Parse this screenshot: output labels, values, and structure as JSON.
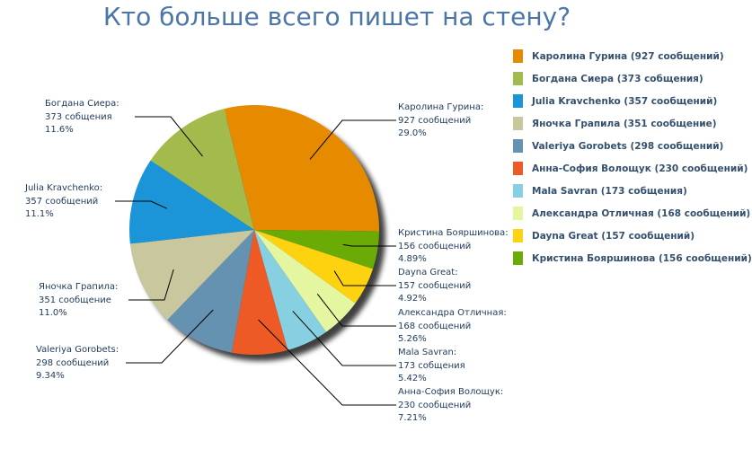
{
  "chart_data": {
    "type": "pie",
    "title": "Кто больше всего пишет на стену?",
    "slices": [
      {
        "name": "Каролина Гурина",
        "value": 927,
        "unit": "сообщений",
        "percent": "29.0%",
        "color": "#e68a00",
        "legend": "Каролина Гурина (927 сообщений)"
      },
      {
        "name": "Кристина Бояршинова",
        "value": 156,
        "unit": "сообщений",
        "percent": "4.89%",
        "color": "#6bab05",
        "legend": "Кристина Бояршинова (156 сообщений)"
      },
      {
        "name": "Dayna Great",
        "value": 157,
        "unit": "сообщений",
        "percent": "4.92%",
        "color": "#fdd30f",
        "legend": "Dayna Great (157 сообщений)"
      },
      {
        "name": "Александра Отличная",
        "value": 168,
        "unit": "сообщений",
        "percent": "5.26%",
        "color": "#e4f6a0",
        "legend": "Александра Отличная (168 сообщений)"
      },
      {
        "name": "Mala Savran",
        "value": 173,
        "unit": "собщения",
        "percent": "5.42%",
        "color": "#87d0e1",
        "legend": "Mala Savran (173 собщения)"
      },
      {
        "name": "Анна-София Волощук",
        "value": 230,
        "unit": "сообщений",
        "percent": "7.21%",
        "color": "#ee5a26",
        "legend": "Анна-София Волощук (230 сообщений)"
      },
      {
        "name": "Valeriya Gorobets",
        "value": 298,
        "unit": "сообщений",
        "percent": "9.34%",
        "color": "#6592b1",
        "legend": "Valeriya Gorobets (298 сообщений)"
      },
      {
        "name": "Яночка Грапила",
        "value": 351,
        "unit": "сообщение",
        "percent": "11.0%",
        "color": "#c8c79e",
        "legend": "Яночка Грапила (351 сообщение)"
      },
      {
        "name": "Julia Kravchenko",
        "value": 357,
        "unit": "сообщений",
        "percent": "11.1%",
        "color": "#1b95d8",
        "legend": "Julia Kravchenko (357 сообщений)"
      },
      {
        "name": "Богдана Сиера",
        "value": 373,
        "unit": "собщения",
        "percent": "11.6%",
        "color": "#a3bb4c",
        "legend": "Богдана Сиера (373 собщения)"
      }
    ],
    "legend_order": [
      0,
      9,
      8,
      7,
      6,
      5,
      4,
      3,
      2,
      1
    ],
    "legend_position": "right"
  }
}
